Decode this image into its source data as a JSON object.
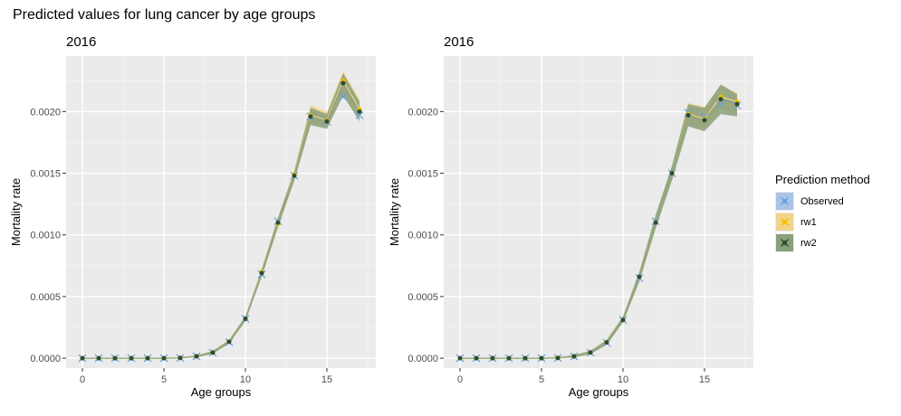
{
  "title": "Predicted values for lung cancer by age groups",
  "legend": {
    "title": "Prediction method",
    "placement": "right",
    "entries": [
      {
        "name": "Observed",
        "color": "#6ca0dc",
        "fill": "#a9c4e5",
        "marker": "x"
      },
      {
        "name": "rw1",
        "color": "#f0c000",
        "fill": "#f2d38a",
        "marker": "dot"
      },
      {
        "name": "rw2",
        "color": "#2d4d2d",
        "fill": "#8aa07a",
        "marker": "dot"
      }
    ]
  },
  "chart_data": [
    {
      "type": "line",
      "title": "2016",
      "xlabel": "Age groups",
      "ylabel": "Mortality rate",
      "xlim": [
        -1,
        18
      ],
      "ylim": [
        -8e-05,
        0.00245
      ],
      "xticks": [
        0,
        5,
        10,
        15
      ],
      "xtick_labels": [
        "0",
        "5",
        "10",
        "15"
      ],
      "yticks": [
        0,
        0.0005,
        0.001,
        0.0015,
        0.002
      ],
      "ytick_labels": [
        "0.0000",
        "0.0005",
        "0.0010",
        "0.0015",
        "0.0020"
      ],
      "grid": true,
      "x": [
        0,
        1,
        2,
        3,
        4,
        5,
        6,
        7,
        8,
        9,
        10,
        11,
        12,
        13,
        14,
        15,
        16,
        17
      ],
      "series": [
        {
          "name": "Observed",
          "values": [
            0,
            0,
            0,
            0,
            0,
            0,
            2e-06,
            1.5e-05,
            4.5e-05,
            0.00013,
            0.00032,
            0.00068,
            0.00111,
            0.00148,
            0.00196,
            0.00192,
            0.00212,
            0.00197
          ]
        },
        {
          "name": "rw1",
          "values": [
            0,
            0,
            0,
            0,
            0,
            0,
            3e-06,
            1.6e-05,
            4.7e-05,
            0.000135,
            0.00032,
            0.0007,
            0.00109,
            0.00149,
            0.00197,
            0.00193,
            0.00225,
            0.00202
          ],
          "lower": [
            0,
            0,
            0,
            0,
            0,
            0,
            0,
            8e-06,
            3.5e-05,
            0.00012,
            0.0003,
            0.00067,
            0.00106,
            0.00145,
            0.00191,
            0.00188,
            0.00215,
            0.00194
          ],
          "upper": [
            0,
            0,
            0,
            0,
            0,
            0,
            8e-06,
            2.4e-05,
            6e-05,
            0.00015,
            0.00034,
            0.00073,
            0.00113,
            0.00153,
            0.00205,
            0.002,
            0.00233,
            0.0021
          ]
        },
        {
          "name": "rw2",
          "values": [
            0,
            0,
            0,
            0,
            0,
            0,
            2e-06,
            1.5e-05,
            4.6e-05,
            0.000133,
            0.00032,
            0.00069,
            0.0011,
            0.00148,
            0.00196,
            0.00192,
            0.00223,
            0.002
          ],
          "lower": [
            0,
            0,
            0,
            0,
            0,
            0,
            0,
            8e-06,
            3.6e-05,
            0.00012,
            0.0003,
            0.00066,
            0.00106,
            0.00144,
            0.00189,
            0.00186,
            0.00213,
            0.00192
          ],
          "upper": [
            0,
            0,
            0,
            0,
            0,
            0,
            7e-06,
            2.3e-05,
            5.8e-05,
            0.000148,
            0.00034,
            0.00072,
            0.00114,
            0.00152,
            0.00203,
            0.00198,
            0.00231,
            0.00208
          ]
        }
      ]
    },
    {
      "type": "line",
      "title": "2016",
      "xlabel": "Age groups",
      "ylabel": "Mortality rate",
      "xlim": [
        -1,
        18
      ],
      "ylim": [
        -8e-05,
        0.00245
      ],
      "xticks": [
        0,
        5,
        10,
        15
      ],
      "xtick_labels": [
        "0",
        "5",
        "10",
        "15"
      ],
      "yticks": [
        0,
        0.0005,
        0.001,
        0.0015,
        0.002
      ],
      "ytick_labels": [
        "0.0000",
        "0.0005",
        "0.0010",
        "0.0015",
        "0.0020"
      ],
      "grid": true,
      "x": [
        0,
        1,
        2,
        3,
        4,
        5,
        6,
        7,
        8,
        9,
        10,
        11,
        12,
        13,
        14,
        15,
        16,
        17
      ],
      "series": [
        {
          "name": "Observed",
          "values": [
            0,
            0,
            0,
            0,
            0,
            0,
            2e-06,
            1.4e-05,
            4.5e-05,
            0.000125,
            0.00031,
            0.00065,
            0.00111,
            0.0015,
            0.00199,
            0.00196,
            0.00206,
            0.00205
          ]
        },
        {
          "name": "rw1",
          "values": [
            0,
            0,
            0,
            0,
            0,
            0,
            3e-06,
            1.6e-05,
            4.8e-05,
            0.00013,
            0.00031,
            0.00066,
            0.0011,
            0.0015,
            0.00198,
            0.00194,
            0.00212,
            0.00208
          ],
          "lower": [
            0,
            0,
            0,
            0,
            0,
            0,
            0,
            6e-06,
            3.5e-05,
            0.00011,
            0.00029,
            0.00063,
            0.00106,
            0.00145,
            0.0019,
            0.00186,
            0.00202,
            0.00198
          ],
          "upper": [
            0,
            0,
            0,
            0,
            0,
            0,
            8e-06,
            2.6e-05,
            6e-05,
            0.00015,
            0.00034,
            0.0007,
            0.00115,
            0.00155,
            0.00207,
            0.00204,
            0.00221,
            0.00215
          ]
        },
        {
          "name": "rw2",
          "values": [
            0,
            0,
            0,
            0,
            0,
            0,
            2e-06,
            1.5e-05,
            4.6e-05,
            0.000128,
            0.00031,
            0.00066,
            0.0011,
            0.0015,
            0.00197,
            0.00193,
            0.0021,
            0.00206
          ],
          "lower": [
            0,
            0,
            0,
            0,
            0,
            0,
            0,
            6e-06,
            3.4e-05,
            0.00011,
            0.00029,
            0.00062,
            0.00105,
            0.00144,
            0.00188,
            0.00184,
            0.00198,
            0.00196
          ],
          "upper": [
            0,
            0,
            0,
            0,
            0,
            0,
            8e-06,
            2.5e-05,
            6e-05,
            0.000148,
            0.00034,
            0.0007,
            0.00116,
            0.00156,
            0.00206,
            0.00203,
            0.00222,
            0.00214
          ]
        }
      ]
    }
  ]
}
